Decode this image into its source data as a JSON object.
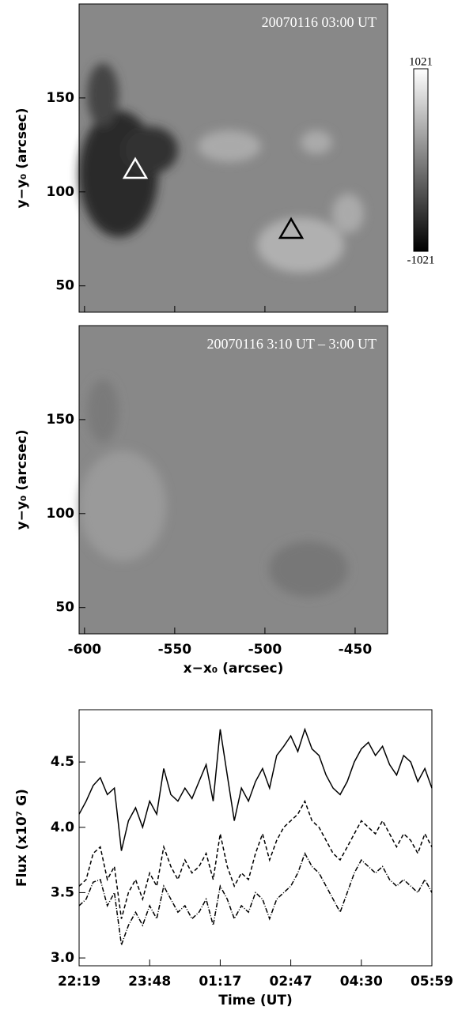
{
  "chart_data": [
    {
      "type": "image",
      "title": "20070116   03:00 UT",
      "ylabel": "y−y₀ (arcsec)",
      "xlim": [
        -603,
        -432
      ],
      "ylim": [
        36,
        200
      ],
      "xticks": [
        -600,
        -550,
        -500,
        -450
      ],
      "yticks": [
        50,
        100,
        150
      ],
      "xtick_labels": false,
      "clim": [
        -1021,
        1021
      ]
    },
    {
      "type": "image",
      "title": "20070116   3:10 UT  –  3:00 UT",
      "ylabel": "y−y₀ (arcsec)",
      "xlabel": "x−x₀ (arcsec)",
      "xlim": [
        -603,
        -432
      ],
      "ylim": [
        36,
        200
      ],
      "xticks": [
        -600,
        -550,
        -500,
        -450
      ],
      "yticks": [
        50,
        100,
        150
      ],
      "xtick_labels": true
    },
    {
      "type": "line",
      "ylabel": "Flux (x10⁷ G)",
      "xlabel": "Time (UT)",
      "x": [
        0,
        2,
        4,
        6,
        8,
        10,
        12,
        14,
        16,
        18,
        20,
        22,
        24,
        26,
        28,
        30,
        32,
        34,
        36,
        38,
        40,
        42,
        44,
        46,
        48,
        50,
        52,
        54,
        56,
        58,
        60,
        62,
        64,
        66,
        68,
        70,
        72,
        74,
        76,
        78,
        80,
        82,
        84,
        86,
        88,
        90,
        92,
        94,
        96,
        98,
        100
      ],
      "xlim": [
        0,
        100
      ],
      "ylim": [
        2.94,
        4.9
      ],
      "xticks": [
        {
          "value": 0,
          "label": "22:19"
        },
        {
          "value": 20,
          "label": "23:48"
        },
        {
          "value": 40,
          "label": "01:17"
        },
        {
          "value": 60,
          "label": "02:47"
        },
        {
          "value": 80,
          "label": "04:30"
        },
        {
          "value": 100,
          "label": "05:59"
        }
      ],
      "yticks": [
        {
          "value": 3,
          "label": "3.0"
        },
        3.5,
        {
          "value": 4,
          "label": "4.0"
        },
        4.5
      ],
      "series": [
        {
          "color": "#000000",
          "dash": "none",
          "values": [
            4.1,
            4.2,
            4.32,
            4.38,
            4.25,
            4.3,
            3.82,
            4.05,
            4.15,
            4.0,
            4.2,
            4.1,
            4.45,
            4.25,
            4.2,
            4.3,
            4.22,
            4.35,
            4.48,
            4.2,
            4.75,
            4.4,
            4.05,
            4.3,
            4.2,
            4.35,
            4.45,
            4.3,
            4.55,
            4.62,
            4.7,
            4.58,
            4.75,
            4.6,
            4.55,
            4.4,
            4.3,
            4.25,
            4.35,
            4.5,
            4.6,
            4.65,
            4.55,
            4.62,
            4.48,
            4.4,
            4.55,
            4.5,
            4.35,
            4.45,
            4.3
          ]
        },
        {
          "color": "#000000",
          "dash": "5,3",
          "values": [
            3.55,
            3.6,
            3.8,
            3.85,
            3.6,
            3.7,
            3.3,
            3.5,
            3.6,
            3.45,
            3.65,
            3.55,
            3.85,
            3.7,
            3.6,
            3.75,
            3.65,
            3.7,
            3.8,
            3.6,
            3.95,
            3.7,
            3.55,
            3.65,
            3.6,
            3.8,
            3.95,
            3.75,
            3.9,
            4.0,
            4.05,
            4.1,
            4.2,
            4.05,
            4.0,
            3.9,
            3.8,
            3.75,
            3.85,
            3.95,
            4.05,
            4.0,
            3.95,
            4.05,
            3.95,
            3.85,
            3.95,
            3.9,
            3.8,
            3.95,
            3.85
          ]
        },
        {
          "color": "#000000",
          "dash": "6,2,1,2",
          "values": [
            3.4,
            3.45,
            3.58,
            3.6,
            3.4,
            3.5,
            3.1,
            3.25,
            3.35,
            3.25,
            3.4,
            3.3,
            3.55,
            3.45,
            3.35,
            3.4,
            3.3,
            3.35,
            3.45,
            3.25,
            3.55,
            3.45,
            3.3,
            3.4,
            3.35,
            3.5,
            3.45,
            3.3,
            3.45,
            3.5,
            3.55,
            3.65,
            3.8,
            3.7,
            3.65,
            3.55,
            3.45,
            3.35,
            3.5,
            3.65,
            3.75,
            3.7,
            3.65,
            3.7,
            3.6,
            3.55,
            3.6,
            3.55,
            3.5,
            3.6,
            3.5
          ]
        }
      ]
    }
  ]
}
